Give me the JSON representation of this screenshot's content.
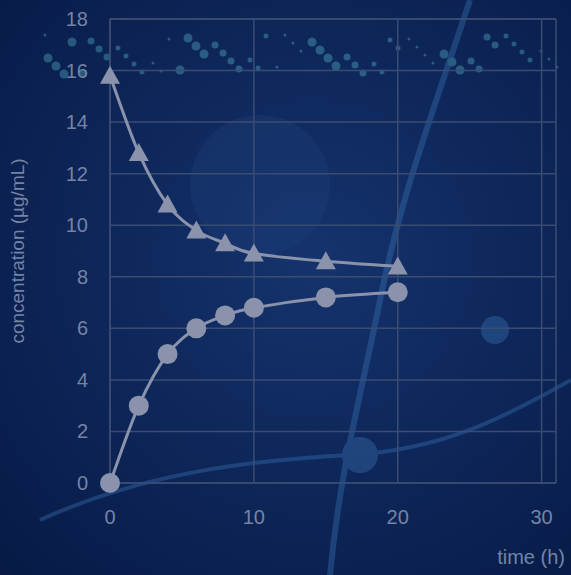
{
  "chart_data": {
    "type": "line",
    "x_label": "time (h)",
    "y_label": "concentration (µg/mL)",
    "series": [
      {
        "color": "#8a93ab",
        "marker": "triangle",
        "line_style": "solid",
        "x": [
          0,
          2,
          4,
          6,
          8,
          10,
          15,
          20
        ],
        "values": [
          15.8,
          12.8,
          10.8,
          9.8,
          9.3,
          8.9,
          8.6,
          8.4
        ]
      },
      {
        "color": "#8a93ab",
        "marker": "circle",
        "line_style": "solid",
        "x": [
          0,
          2,
          4,
          6,
          8,
          10,
          15,
          20
        ],
        "values": [
          0,
          3,
          5,
          6,
          6.5,
          6.8,
          7.2,
          7.4
        ]
      }
    ],
    "xlim": [
      0,
      31
    ],
    "xticks": [
      0,
      10,
      20,
      30
    ],
    "ylim": [
      0,
      18
    ],
    "yticks": [
      0,
      2,
      4,
      6,
      8,
      10,
      12,
      14,
      16,
      18
    ],
    "grid": true
  }
}
